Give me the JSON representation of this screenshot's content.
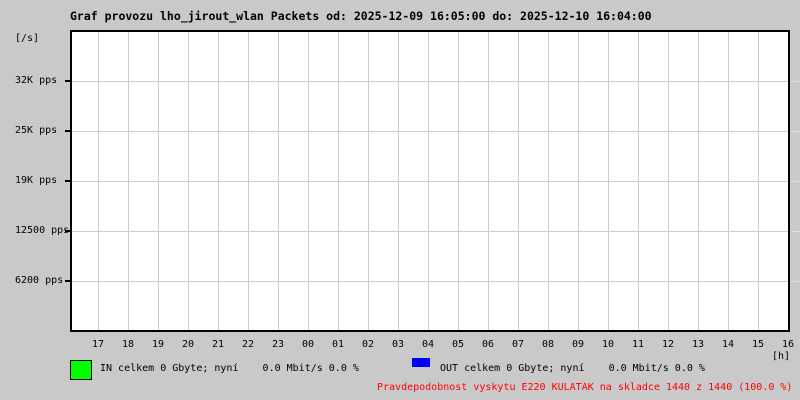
{
  "colors": {
    "background": "#c9c9c9",
    "plot_bg": "#ffffff",
    "grid": "#cdcdcd",
    "border": "#000000",
    "in_green": "#00ff00",
    "out_blue": "#0000ff",
    "warning_red": "#ff0000",
    "text": "#000000"
  },
  "title": "Graf provozu lho_jirout_wlan Packets od: 2025-12-09 16:05:00 do: 2025-12-10 16:04:00",
  "y_axis": {
    "unit_label": "[/s]",
    "tick_labels": [
      "32K pps",
      "25K pps",
      "19K pps",
      "12500 pps",
      "6200 pps"
    ]
  },
  "x_axis": {
    "unit_label": "[h]",
    "tick_labels": [
      "17",
      "18",
      "19",
      "20",
      "21",
      "22",
      "23",
      "00",
      "01",
      "02",
      "03",
      "04",
      "05",
      "06",
      "07",
      "08",
      "09",
      "10",
      "11",
      "12",
      "13",
      "14",
      "15",
      "16"
    ]
  },
  "legend": {
    "in_label": "IN celkem 0 Gbyte; nyní    0.0 Mbit/s 0.0 %",
    "out_label": "OUT celkem 0 Gbyte; nyní    0.0 Mbit/s 0.0 %",
    "in_color": "#00ff00",
    "out_color": "#0000ff"
  },
  "footer": {
    "warning_text": "Pravdepodobnost vyskytu E220 KULATAK na skladce 1440 z 1440 (100.0 %)"
  },
  "chart_data": {
    "type": "area",
    "title": "Graf provozu lho_jirout_wlan Packets od: 2025-12-09 16:05:00 do: 2025-12-10 16:04:00",
    "x": [
      "17",
      "18",
      "19",
      "20",
      "21",
      "22",
      "23",
      "00",
      "01",
      "02",
      "03",
      "04",
      "05",
      "06",
      "07",
      "08",
      "09",
      "10",
      "11",
      "12",
      "13",
      "14",
      "15",
      "16"
    ],
    "series": [
      {
        "name": "IN",
        "color": "#00ff00",
        "values": [
          0,
          0,
          0,
          0,
          0,
          0,
          0,
          0,
          0,
          0,
          0,
          0,
          0,
          0,
          0,
          0,
          0,
          0,
          0,
          0,
          0,
          0,
          0,
          0
        ]
      },
      {
        "name": "OUT",
        "color": "#0000ff",
        "values": [
          0,
          0,
          0,
          0,
          0,
          0,
          0,
          0,
          0,
          0,
          0,
          0,
          0,
          0,
          0,
          0,
          0,
          0,
          0,
          0,
          0,
          0,
          0,
          0
        ]
      }
    ],
    "ylabel": "[/s]",
    "xlabel": "[h]",
    "ytick_labels": [
      "6200 pps",
      "12500 pps",
      "19K pps",
      "25K pps",
      "32K pps"
    ],
    "ylim_labels": [
      0,
      "32K pps"
    ],
    "grid": true,
    "legend_position": "bottom"
  }
}
